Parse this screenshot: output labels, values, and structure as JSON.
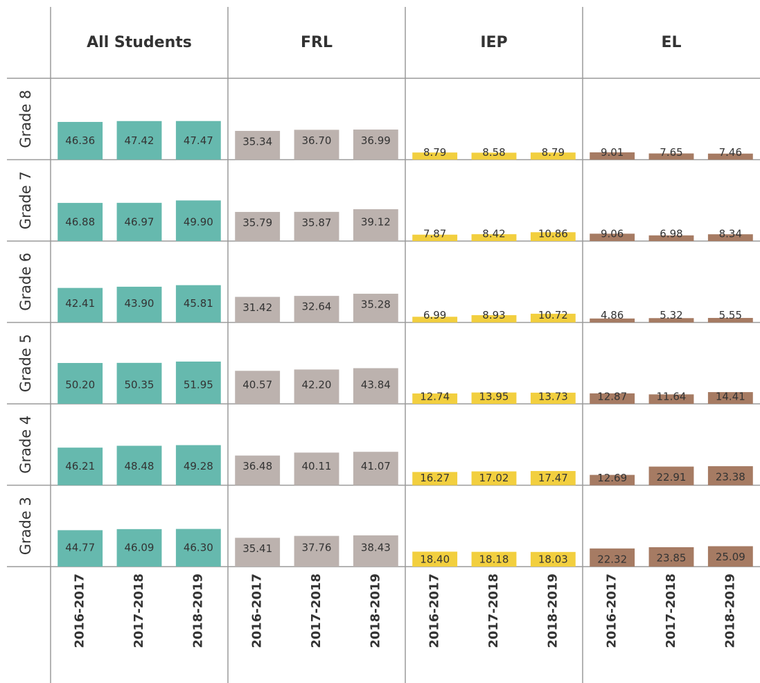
{
  "chart_data": {
    "type": "bar",
    "rows": [
      "Grade 8",
      "Grade 7",
      "Grade 6",
      "Grade 5",
      "Grade 4",
      "Grade 3"
    ],
    "categories": [
      "2016-2017",
      "2017-2018",
      "2018-2019"
    ],
    "ylim": [
      0,
      100
    ],
    "series": [
      {
        "name": "All Students",
        "color": "#66b9ae",
        "values": [
          [
            46.36,
            47.42,
            47.47
          ],
          [
            46.88,
            46.97,
            49.9
          ],
          [
            42.41,
            43.9,
            45.81
          ],
          [
            50.2,
            50.35,
            51.95
          ],
          [
            46.21,
            48.48,
            49.28
          ],
          [
            44.77,
            46.09,
            46.3
          ]
        ],
        "value_labels": [
          [
            "46.36",
            "47.42",
            "47.47"
          ],
          [
            "46.88",
            "46.97",
            "49.90"
          ],
          [
            "42.41",
            "43.90",
            "45.81"
          ],
          [
            "50.20",
            "50.35",
            "51.95"
          ],
          [
            "46.21",
            "48.48",
            "49.28"
          ],
          [
            "44.77",
            "46.09",
            "46.30"
          ]
        ]
      },
      {
        "name": "FRL",
        "color": "#bcb2ae",
        "values": [
          [
            35.34,
            36.7,
            36.99
          ],
          [
            35.79,
            35.87,
            39.12
          ],
          [
            31.42,
            32.64,
            35.28
          ],
          [
            40.57,
            42.2,
            43.84
          ],
          [
            36.48,
            40.11,
            41.07
          ],
          [
            35.41,
            37.76,
            38.43
          ]
        ],
        "value_labels": [
          [
            "35.34",
            "36.70",
            "36.99"
          ],
          [
            "35.79",
            "35.87",
            "39.12"
          ],
          [
            "31.42",
            "32.64",
            "35.28"
          ],
          [
            "40.57",
            "42.20",
            "43.84"
          ],
          [
            "36.48",
            "40.11",
            "41.07"
          ],
          [
            "35.41",
            "37.76",
            "38.43"
          ]
        ]
      },
      {
        "name": "IEP",
        "color": "#f2cf3f",
        "values": [
          [
            8.79,
            8.58,
            8.79
          ],
          [
            7.87,
            8.42,
            10.86
          ],
          [
            6.99,
            8.93,
            10.72
          ],
          [
            12.74,
            13.95,
            13.73
          ],
          [
            16.27,
            17.02,
            17.47
          ],
          [
            18.4,
            18.18,
            18.03
          ]
        ],
        "value_labels": [
          [
            "8.79",
            "8.58",
            "8.79"
          ],
          [
            "7.87",
            "8.42",
            "10.86"
          ],
          [
            "6.99",
            "8.93",
            "10.72"
          ],
          [
            "12.74",
            "13.95",
            "13.73"
          ],
          [
            "16.27",
            "17.02",
            "17.47"
          ],
          [
            "18.40",
            "18.18",
            "18.03"
          ]
        ]
      },
      {
        "name": "EL",
        "color": "#a67b63",
        "values": [
          [
            9.01,
            7.65,
            7.46
          ],
          [
            9.06,
            6.98,
            8.34
          ],
          [
            4.86,
            5.32,
            5.55
          ],
          [
            12.87,
            11.64,
            14.41
          ],
          [
            12.69,
            22.91,
            23.38
          ],
          [
            22.32,
            23.85,
            25.09
          ]
        ],
        "value_labels": [
          [
            "9.01",
            "7.65",
            "7.46"
          ],
          [
            "9.06",
            "6.98",
            "8.34"
          ],
          [
            "4.86",
            "5.32",
            "5.55"
          ],
          [
            "12.87",
            "11.64",
            "14.41"
          ],
          [
            "12.69",
            "22.91",
            "23.38"
          ],
          [
            "22.32",
            "23.85",
            "25.09"
          ]
        ]
      }
    ]
  }
}
